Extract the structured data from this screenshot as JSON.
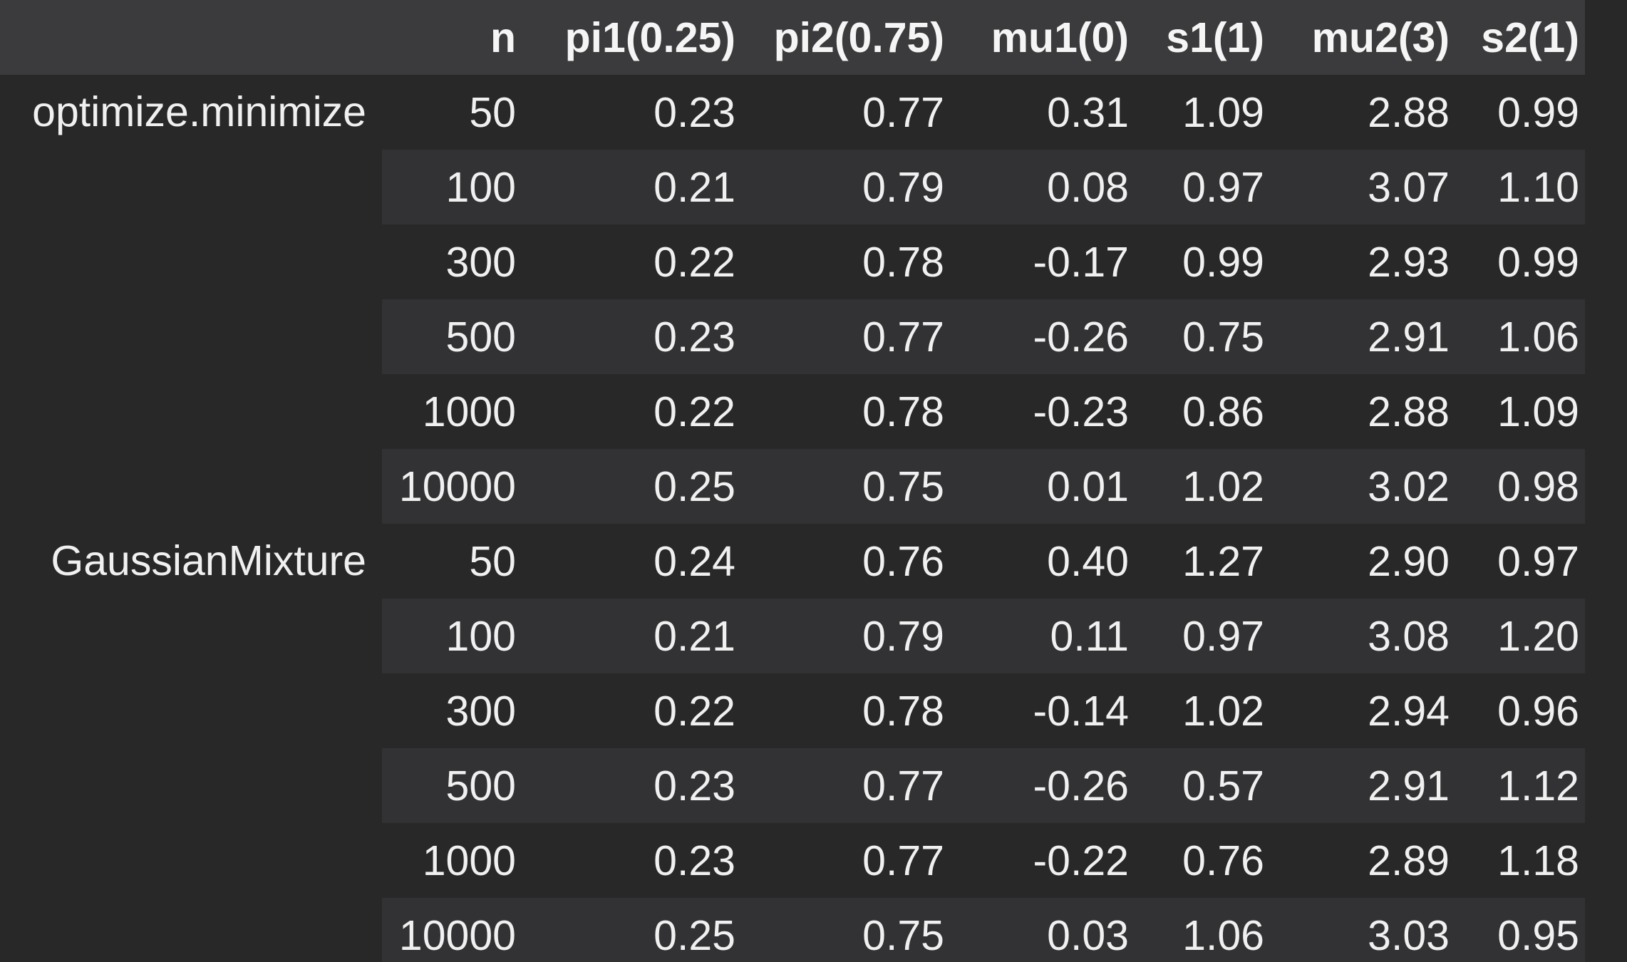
{
  "colors": {
    "page_bg": "#282829",
    "header_bg": "#3b3b3d",
    "stripe_bg": "#323234",
    "text": "#f0f0f0"
  },
  "table": {
    "header": {
      "index_label": "",
      "columns": [
        "n",
        "pi1(0.25)",
        "pi2(0.75)",
        "mu1(0)",
        "s1(1)",
        "mu2(3)",
        "s2(1)"
      ]
    },
    "groups": [
      {
        "label": "optimize.minimize",
        "rows": [
          [
            "50",
            "0.23",
            "0.77",
            "0.31",
            "1.09",
            "2.88",
            "0.99"
          ],
          [
            "100",
            "0.21",
            "0.79",
            "0.08",
            "0.97",
            "3.07",
            "1.10"
          ],
          [
            "300",
            "0.22",
            "0.78",
            "-0.17",
            "0.99",
            "2.93",
            "0.99"
          ],
          [
            "500",
            "0.23",
            "0.77",
            "-0.26",
            "0.75",
            "2.91",
            "1.06"
          ],
          [
            "1000",
            "0.22",
            "0.78",
            "-0.23",
            "0.86",
            "2.88",
            "1.09"
          ],
          [
            "10000",
            "0.25",
            "0.75",
            "0.01",
            "1.02",
            "3.02",
            "0.98"
          ]
        ]
      },
      {
        "label": "GaussianMixture",
        "rows": [
          [
            "50",
            "0.24",
            "0.76",
            "0.40",
            "1.27",
            "2.90",
            "0.97"
          ],
          [
            "100",
            "0.21",
            "0.79",
            "0.11",
            "0.97",
            "3.08",
            "1.20"
          ],
          [
            "300",
            "0.22",
            "0.78",
            "-0.14",
            "1.02",
            "2.94",
            "0.96"
          ],
          [
            "500",
            "0.23",
            "0.77",
            "-0.26",
            "0.57",
            "2.91",
            "1.12"
          ],
          [
            "1000",
            "0.23",
            "0.77",
            "-0.22",
            "0.76",
            "2.89",
            "1.18"
          ],
          [
            "10000",
            "0.25",
            "0.75",
            "0.03",
            "1.06",
            "3.03",
            "0.95"
          ]
        ]
      }
    ]
  }
}
